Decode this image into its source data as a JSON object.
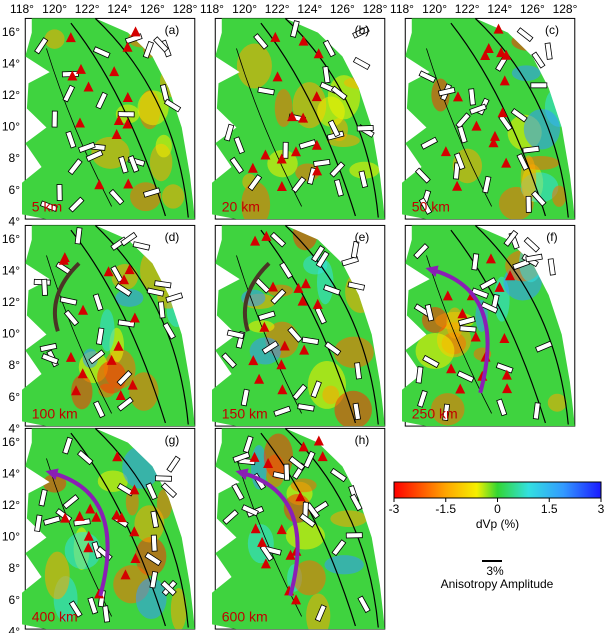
{
  "longitude_labels": [
    "118°",
    "120°",
    "122°",
    "124°",
    "126°",
    "128°"
  ],
  "latitude_labels": [
    "16°",
    "14°",
    "12°",
    "10°",
    "8°",
    "6°",
    "4°"
  ],
  "panels": [
    {
      "label": "(a)",
      "depth": "5 km"
    },
    {
      "label": "(b)",
      "depth": "20 km"
    },
    {
      "label": "(c)",
      "depth": "50 km"
    },
    {
      "label": "(d)",
      "depth": "100 km"
    },
    {
      "label": "(e)",
      "depth": "150 km"
    },
    {
      "label": "(f)",
      "depth": "250 km"
    },
    {
      "label": "(g)",
      "depth": "400 km"
    },
    {
      "label": "(h)",
      "depth": "600 km"
    }
  ],
  "colorbar": {
    "lim": [
      -3,
      3
    ],
    "ticks": [
      -3,
      -1.5,
      0,
      1.5,
      3
    ],
    "label": "dVp (%)"
  },
  "scale": {
    "amplitude": "3%",
    "label": "Anisotropy Amplitude"
  }
}
